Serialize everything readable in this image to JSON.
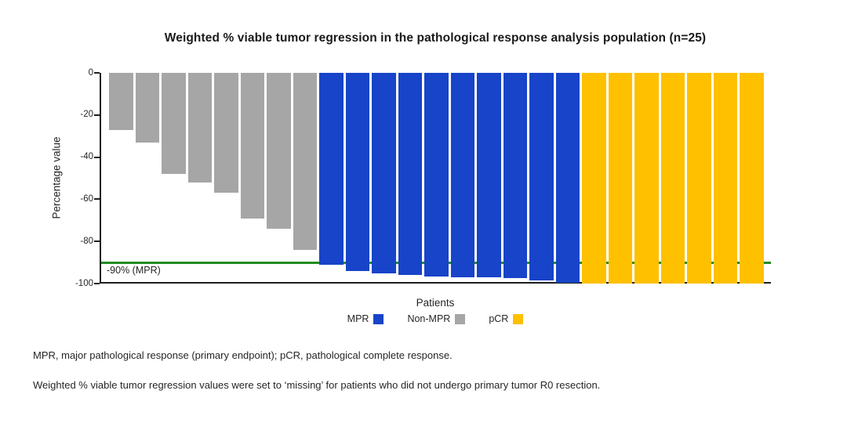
{
  "title": "Weighted % viable tumor regression in the pathological response analysis population (n=25)",
  "chart_data": {
    "type": "bar",
    "title": "Weighted % viable tumor regression in the pathological response analysis population (n=25)",
    "xlabel": "Patients",
    "ylabel": "Percentage value",
    "ylim": [
      -100,
      0
    ],
    "yticks": [
      0,
      -20,
      -40,
      -60,
      -80,
      -100
    ],
    "grid": false,
    "legend_position": "bottom",
    "n_patients": 25,
    "bar_order": [
      "Non-MPR",
      "MPR",
      "pCR"
    ],
    "series": [
      {
        "name": "Non-MPR",
        "color": "#a6a6a6",
        "values": [
          -27,
          -33,
          -48,
          -52,
          -57,
          -69,
          -74,
          -84
        ]
      },
      {
        "name": "MPR",
        "color": "#1744c8",
        "values": [
          -91,
          -94,
          -95,
          -96,
          -96.5,
          -97,
          -97,
          -97.5,
          -98.5,
          -99.5
        ]
      },
      {
        "name": "pCR",
        "color": "#ffc000",
        "values": [
          -100,
          -100,
          -100,
          -100,
          -100,
          -100,
          -100
        ]
      }
    ],
    "reference_line": {
      "value": -90,
      "label": "-90% (MPR)",
      "color": "#218c21"
    },
    "legend": [
      {
        "label": "MPR",
        "color": "#1744c8"
      },
      {
        "label": "Non-MPR",
        "color": "#a6a6a6"
      },
      {
        "label": "pCR",
        "color": "#ffc000"
      }
    ]
  },
  "footnotes": [
    "MPR, major pathological response (primary endpoint); pCR, pathological complete response.",
    "Weighted % viable tumor regression values were set to ‘missing’ for patients who did not undergo primary tumor R0 resection."
  ],
  "colors": {
    "mpr_blue": "#1744c8",
    "non_mpr_gray": "#a6a6a6",
    "pcr_yellow": "#ffc000",
    "reference_green": "#218c21",
    "axis": "#1f1f1f"
  }
}
